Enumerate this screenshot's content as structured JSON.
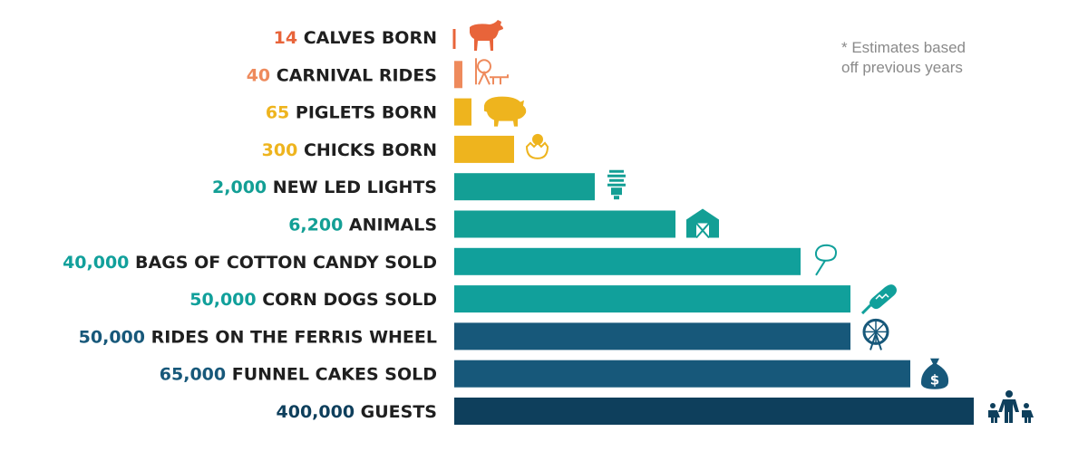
{
  "chart_data": {
    "type": "bar",
    "orientation": "horizontal",
    "note_lines": [
      "* Estimates based",
      "off previous years"
    ],
    "categories": [
      "CALVES BORN",
      "CARNIVAL RIDES",
      "PIGLETS BORN",
      "CHICKS BORN",
      "NEW LED LIGHTS",
      "ANIMALS",
      "BAGS OF COTTON CANDY SOLD",
      "CORN DOGS SOLD",
      "RIDES ON THE FERRIS WHEEL",
      "FUNNEL CAKES SOLD",
      "GUESTS"
    ],
    "value_labels": [
      "14",
      "40",
      "65",
      "300",
      "2,000",
      "6,200",
      "40,000",
      "50,000",
      "50,000",
      "65,000",
      "400,000"
    ],
    "values": [
      14,
      40,
      65,
      300,
      2000,
      6200,
      40000,
      50000,
      50000,
      65000,
      400000
    ],
    "colors": [
      "#e8643a",
      "#ee8a5c",
      "#eeb41e",
      "#eeb41e",
      "#139f95",
      "#139f95",
      "#11a09b",
      "#11a09b",
      "#17587a",
      "#17587a",
      "#0e3f5c"
    ],
    "icons": [
      "cow-icon",
      "carnival-ride-icon",
      "pig-icon",
      "hatching-chick-icon",
      "led-bulb-icon",
      "barn-icon",
      "cotton-candy-icon",
      "corn-dog-icon",
      "ferris-wheel-icon",
      "money-bag-icon",
      "family-icon"
    ],
    "grid": false,
    "legend": "none"
  }
}
